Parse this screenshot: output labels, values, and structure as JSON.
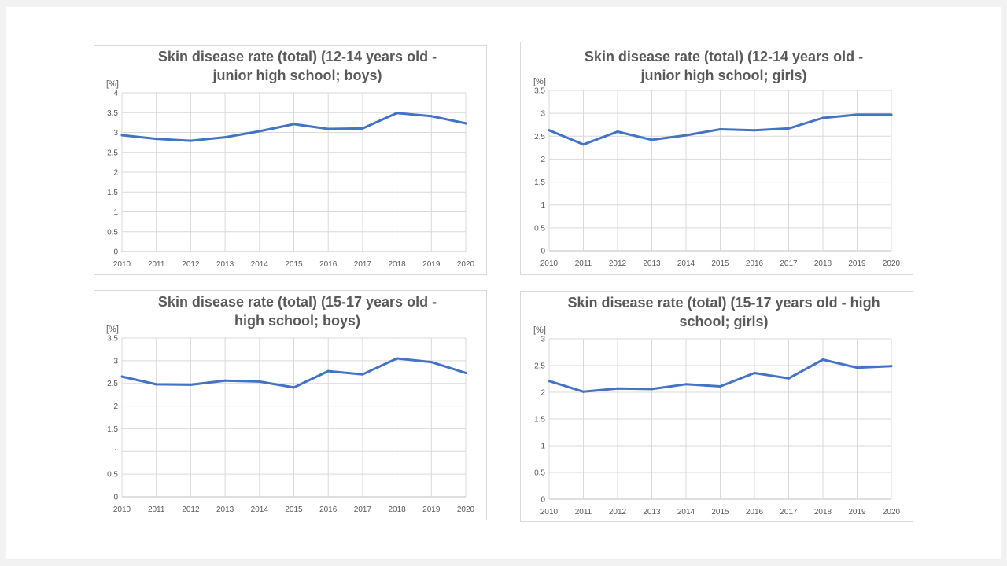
{
  "chart_data": [
    {
      "type": "line",
      "title": [
        "Skin disease rate (total) (12-14 years old -",
        "junior high school; boys)"
      ],
      "ylabel": "[%]",
      "xlabel": "",
      "x": [
        "2010",
        "2011",
        "2012",
        "2013",
        "2014",
        "2015",
        "2016",
        "2017",
        "2018",
        "2019",
        "2020"
      ],
      "ylim": [
        0,
        4
      ],
      "yticks": [
        "0",
        "0.5",
        "1",
        "1.5",
        "2",
        "2.5",
        "3",
        "3.5",
        "4"
      ],
      "grid": true,
      "series": [
        {
          "values": [
            2.93,
            2.84,
            2.79,
            2.88,
            3.03,
            3.21,
            3.09,
            3.1,
            3.49,
            3.41,
            3.23
          ]
        }
      ]
    },
    {
      "type": "line",
      "title": [
        "Skin disease rate (total) (12-14 years old -",
        "junior high school; girls)"
      ],
      "ylabel": "[%]",
      "xlabel": "",
      "x": [
        "2010",
        "2011",
        "2012",
        "2013",
        "2014",
        "2015",
        "2016",
        "2017",
        "2018",
        "2019",
        "2020"
      ],
      "ylim": [
        0,
        3.5
      ],
      "yticks": [
        "0",
        "0.5",
        "1",
        "1.5",
        "2",
        "2.5",
        "3",
        "3.5"
      ],
      "grid": true,
      "series": [
        {
          "values": [
            2.63,
            2.32,
            2.6,
            2.42,
            2.52,
            2.65,
            2.63,
            2.67,
            2.9,
            2.97,
            2.97
          ]
        }
      ]
    },
    {
      "type": "line",
      "title": [
        "Skin disease rate (total) (15-17 years old -",
        "high school; boys)"
      ],
      "ylabel": "[%]",
      "xlabel": "",
      "x": [
        "2010",
        "2011",
        "2012",
        "2013",
        "2014",
        "2015",
        "2016",
        "2017",
        "2018",
        "2019",
        "2020"
      ],
      "ylim": [
        0,
        3.5
      ],
      "yticks": [
        "0",
        "0.5",
        "1",
        "1.5",
        "2",
        "2.5",
        "3",
        "3.5"
      ],
      "grid": true,
      "series": [
        {
          "values": [
            2.65,
            2.48,
            2.47,
            2.56,
            2.54,
            2.41,
            2.77,
            2.7,
            3.05,
            2.97,
            2.73
          ]
        }
      ]
    },
    {
      "type": "line",
      "title": [
        "Skin disease rate (total) (15-17 years old -  high",
        "school; girls)"
      ],
      "ylabel": "[%]",
      "xlabel": "",
      "x": [
        "2010",
        "2011",
        "2012",
        "2013",
        "2014",
        "2015",
        "2016",
        "2017",
        "2018",
        "2019",
        "2020"
      ],
      "ylim": [
        0,
        3
      ],
      "yticks": [
        "0",
        "0.5",
        "1",
        "1.5",
        "2",
        "2.5",
        "3"
      ],
      "grid": true,
      "series": [
        {
          "values": [
            2.21,
            2.01,
            2.07,
            2.06,
            2.15,
            2.11,
            2.36,
            2.26,
            2.61,
            2.46,
            2.49
          ]
        }
      ]
    }
  ],
  "colors": {
    "series": "#4472c4",
    "grid": "#d9d9d9",
    "text": "#595959",
    "panel_border": "#d9d9d9"
  }
}
